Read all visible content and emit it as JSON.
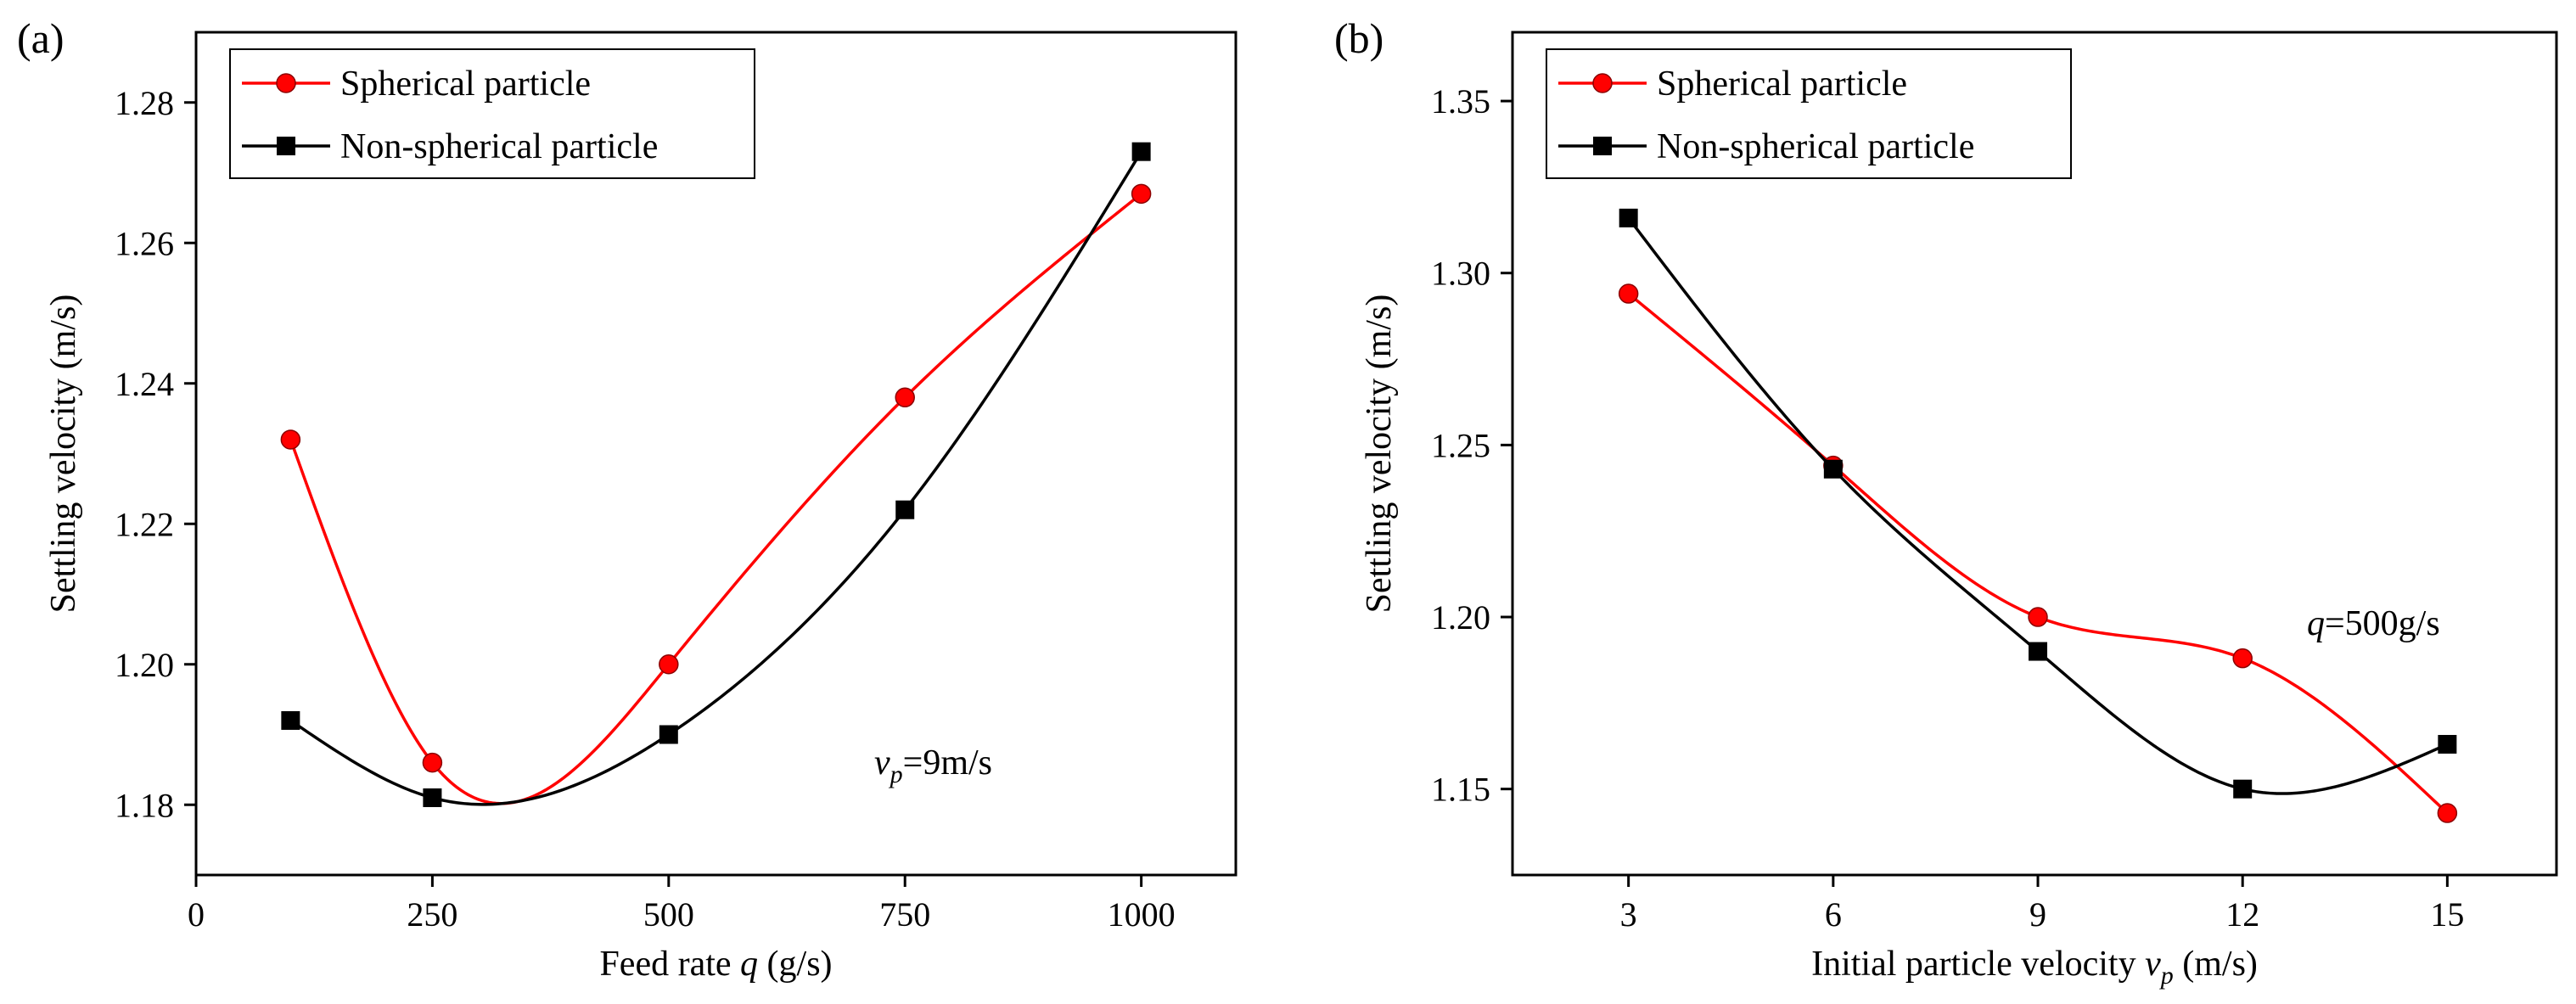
{
  "chart_data": [
    {
      "type": "line",
      "panel_label": "(a)",
      "xlabel": {
        "prefix": "Feed rate ",
        "var": "q",
        "suffix": " (g/s)"
      },
      "ylabel": "Settling velocity (m/s)",
      "xlim": [
        0,
        1100
      ],
      "ylim": [
        1.17,
        1.29
      ],
      "xticks": [
        0,
        250,
        500,
        750,
        1000
      ],
      "yticks": [
        1.18,
        1.2,
        1.22,
        1.24,
        1.26,
        1.28
      ],
      "xtick_labels": [
        "0",
        "250",
        "500",
        "750",
        "1000"
      ],
      "ytick_labels": [
        "1.18",
        "1.20",
        "1.22",
        "1.24",
        "1.26",
        "1.28"
      ],
      "annotation": {
        "var": "v",
        "sub": "p",
        "text": "=9m/s"
      },
      "legend_position": "top-left",
      "series": [
        {
          "name": "Spherical particle",
          "color": "#ff0000",
          "marker": "circle",
          "x": [
            100,
            250,
            500,
            750,
            1000
          ],
          "y": [
            1.232,
            1.186,
            1.2,
            1.238,
            1.267
          ]
        },
        {
          "name": "Non-spherical particle",
          "color": "#000000",
          "marker": "square",
          "x": [
            100,
            250,
            500,
            750,
            1000
          ],
          "y": [
            1.192,
            1.181,
            1.19,
            1.222,
            1.273
          ]
        }
      ]
    },
    {
      "type": "line",
      "panel_label": "(b)",
      "xlabel": {
        "prefix": "Initial particle velocity ",
        "var": "v",
        "sub": "p",
        "suffix": " (m/s)"
      },
      "ylabel": "Settling velocity (m/s)",
      "xlim": [
        1.3,
        16.6
      ],
      "ylim": [
        1.125,
        1.37
      ],
      "xticks": [
        3,
        6,
        9,
        12,
        15
      ],
      "yticks": [
        1.15,
        1.2,
        1.25,
        1.3,
        1.35
      ],
      "xtick_labels": [
        "3",
        "6",
        "9",
        "12",
        "15"
      ],
      "ytick_labels": [
        "1.15",
        "1.20",
        "1.25",
        "1.30",
        "1.35"
      ],
      "annotation": {
        "var": "q",
        "text": "=500g/s"
      },
      "legend_position": "top-left",
      "series": [
        {
          "name": "Spherical particle",
          "color": "#ff0000",
          "marker": "circle",
          "x": [
            3,
            6,
            9,
            12,
            15
          ],
          "y": [
            1.294,
            1.244,
            1.2,
            1.188,
            1.143
          ]
        },
        {
          "name": "Non-spherical particle",
          "color": "#000000",
          "marker": "square",
          "x": [
            3,
            6,
            9,
            12,
            15
          ],
          "y": [
            1.316,
            1.243,
            1.19,
            1.15,
            1.163
          ]
        }
      ]
    }
  ]
}
